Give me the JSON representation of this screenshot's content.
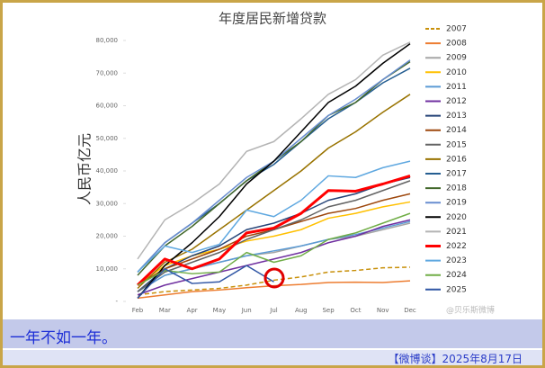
{
  "chart_data": {
    "type": "line",
    "title": "年度居民新增贷款",
    "y_label": "人民币亿元",
    "watermark": "@贝乐斯微博",
    "categories": [
      "Feb",
      "Mar",
      "Apr",
      "May",
      "Jun",
      "Jul",
      "Aug",
      "Sep",
      "Oct",
      "Nov",
      "Dec"
    ],
    "ylim": [
      0,
      80000
    ],
    "yticks": [
      {
        "value": 0,
        "label": "-"
      },
      {
        "value": 10000,
        "label": "10,000"
      },
      {
        "value": 20000,
        "label": "20,000"
      },
      {
        "value": 30000,
        "label": "30,000"
      },
      {
        "value": 40000,
        "label": "40,000"
      },
      {
        "value": 50000,
        "label": "50,000"
      },
      {
        "value": 60000,
        "label": "60,000"
      },
      {
        "value": 70000,
        "label": "70,000"
      },
      {
        "value": 80000,
        "label": "80,000"
      }
    ],
    "legend": "right",
    "series": [
      {
        "name": "2007",
        "color": "#c8900a",
        "dashed": true,
        "values": [
          2000,
          3000,
          3500,
          4000,
          5000,
          6500,
          7500,
          9000,
          9500,
          10300,
          10500
        ]
      },
      {
        "name": "2008",
        "color": "#ed7d31",
        "values": [
          1000,
          2000,
          3000,
          3500,
          4200,
          4800,
          5200,
          5800,
          5900,
          5800,
          6300
        ]
      },
      {
        "name": "2009",
        "color": "#a5a5a5",
        "values": [
          3000,
          8000,
          10000,
          12000,
          14000,
          15000,
          17000,
          19000,
          20000,
          22000,
          24000
        ]
      },
      {
        "name": "2010",
        "color": "#ffc000",
        "values": [
          5000,
          11000,
          14000,
          16000,
          18500,
          20000,
          22000,
          25500,
          27000,
          29000,
          30500
        ]
      },
      {
        "name": "2011",
        "color": "#5b9bd5",
        "values": [
          3000,
          8000,
          10000,
          12000,
          14000,
          15500,
          17000,
          19000,
          20500,
          22500,
          24500
        ]
      },
      {
        "name": "2012",
        "color": "#7030a0",
        "values": [
          2000,
          5000,
          7000,
          9000,
          11000,
          13000,
          15000,
          18000,
          20000,
          23000,
          25000
        ]
      },
      {
        "name": "2013",
        "color": "#264478",
        "values": [
          3000,
          10000,
          14000,
          17000,
          22000,
          24000,
          27000,
          31000,
          33000,
          36000,
          38000
        ]
      },
      {
        "name": "2014",
        "color": "#9e480e",
        "values": [
          5000,
          10000,
          13000,
          16000,
          20000,
          22000,
          24500,
          27000,
          28500,
          31000,
          33000
        ]
      },
      {
        "name": "2015",
        "color": "#636363",
        "values": [
          3000,
          9000,
          12000,
          15000,
          19000,
          22000,
          25000,
          29000,
          31000,
          34000,
          37000
        ]
      },
      {
        "name": "2016",
        "color": "#997300",
        "values": [
          4000,
          12000,
          16000,
          22000,
          28000,
          34000,
          40000,
          47000,
          52000,
          58000,
          63500
        ]
      },
      {
        "name": "2017",
        "color": "#255e91",
        "values": [
          9000,
          18000,
          24000,
          30000,
          37000,
          42000,
          49000,
          56000,
          61000,
          67000,
          71500
        ]
      },
      {
        "name": "2018",
        "color": "#43682b",
        "values": [
          8000,
          17000,
          23000,
          30000,
          37000,
          43000,
          49000,
          57000,
          61000,
          68000,
          73500
        ]
      },
      {
        "name": "2019",
        "color": "#698ed0",
        "values": [
          9000,
          18000,
          24000,
          31000,
          38000,
          43000,
          50000,
          57000,
          62000,
          68000,
          74000
        ]
      },
      {
        "name": "2020",
        "color": "#000000",
        "values": [
          1000,
          11000,
          18000,
          26000,
          36000,
          43000,
          52000,
          61000,
          66000,
          73000,
          79000
        ]
      },
      {
        "name": "2021",
        "color": "#b4b4b4",
        "values": [
          13000,
          25000,
          30000,
          36000,
          46000,
          49000,
          56000,
          63500,
          68000,
          75500,
          79500
        ]
      },
      {
        "name": "2022",
        "color": "#ff0000",
        "width": 3,
        "values": [
          5000,
          13000,
          10000,
          13000,
          21000,
          22500,
          27000,
          34000,
          33800,
          36000,
          38500
        ]
      },
      {
        "name": "2023",
        "color": "#5fa8e0",
        "values": [
          9000,
          17000,
          15000,
          17500,
          28000,
          26000,
          31000,
          38500,
          38000,
          41000,
          43000
        ]
      },
      {
        "name": "2024",
        "color": "#70ad47",
        "values": [
          5000,
          9500,
          8500,
          9000,
          15000,
          12000,
          14000,
          19000,
          21000,
          24000,
          27000
        ]
      },
      {
        "name": "2025",
        "color": "#2f55a4",
        "values": [
          1000,
          10000,
          5500,
          6000,
          11000,
          6000,
          null,
          null,
          null,
          null,
          null
        ]
      }
    ]
  },
  "caption": "一年不如一年。",
  "footer": "【微博谈】2025年8月17日"
}
